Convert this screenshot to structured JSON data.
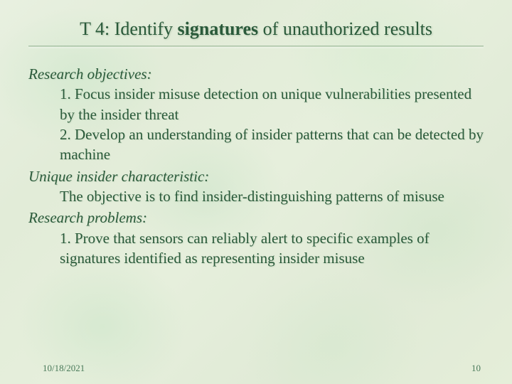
{
  "slide": {
    "title_prefix": "T 4: Identify ",
    "title_bold": "signatures",
    "title_suffix": " of unauthorized results",
    "title_color": "#2a5a3a",
    "title_fontsize": 26,
    "body_color": "#2a5a3a",
    "body_fontsize": 21,
    "background_base": "#e5eed9",
    "sections": {
      "research_objectives": {
        "heading": "Research objectives:",
        "items": [
          "1. Focus insider misuse detection on unique vulnerabilities presented by the insider threat",
          "2. Develop an understanding of insider patterns that can be detected by machine"
        ]
      },
      "unique_characteristic": {
        "heading": "Unique insider characteristic:",
        "items": [
          "The objective is to find insider-distinguishing patterns of misuse"
        ]
      },
      "research_problems": {
        "heading": "Research problems:",
        "items": [
          "1. Prove that sensors can reliably alert to specific examples of signatures identified as representing insider misuse"
        ]
      }
    },
    "footer": {
      "date": "10/18/2021",
      "page_number": "10"
    }
  }
}
